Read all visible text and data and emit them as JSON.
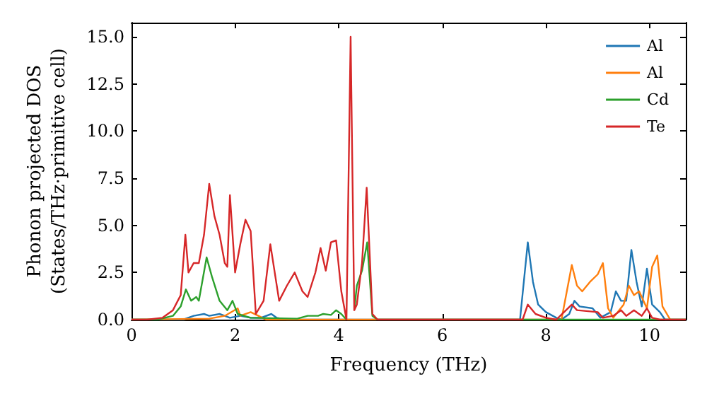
{
  "chart_data": {
    "type": "line",
    "xlabel": "Frequency (THz)",
    "ylabel": "Phonon projected DOS\n(States/THz·primitive cell)",
    "xlim": [
      0,
      10.7
    ],
    "xticks": [
      0,
      2,
      4,
      6,
      8,
      10
    ],
    "ylim": [
      0,
      15.75
    ],
    "yticks": [
      {
        "value": 0,
        "label": "0.0"
      },
      {
        "value": 2.5,
        "label": "2.5"
      },
      {
        "value": 5,
        "label": "5.0"
      },
      {
        "value": 7.5,
        "label": "7.5"
      },
      {
        "value": 10,
        "label": "10.0"
      },
      {
        "value": 12.5,
        "label": "12.5"
      },
      {
        "value": 15,
        "label": "15.0"
      }
    ],
    "grid": false,
    "legend": "top right",
    "marker": "none",
    "line_style": "solid",
    "series": [
      {
        "name": "Al",
        "color": "#1f77b4",
        "x": [
          0,
          1.0,
          1.2,
          1.4,
          1.5,
          1.7,
          1.9,
          2.1,
          2.3,
          2.5,
          2.7,
          2.8,
          3.0,
          7.5,
          7.65,
          7.75,
          7.85,
          8.0,
          8.2,
          8.3,
          8.45,
          8.55,
          8.65,
          8.9,
          9.05,
          9.25,
          9.35,
          9.45,
          9.55,
          9.65,
          9.75,
          9.85,
          9.95,
          10.05,
          10.2,
          10.3,
          10.7
        ],
        "values": [
          0,
          0,
          0.2,
          0.3,
          0.2,
          0.3,
          0.1,
          0.2,
          0.1,
          0.1,
          0.3,
          0.1,
          0,
          0,
          4.1,
          2.0,
          0.8,
          0.4,
          0.1,
          0,
          0.3,
          1.0,
          0.7,
          0.6,
          0.1,
          0.4,
          1.5,
          1.0,
          1.0,
          3.7,
          2.0,
          0.7,
          2.7,
          0.8,
          0.4,
          0,
          0
        ]
      },
      {
        "name": "Al",
        "color": "#ff7f0e",
        "x": [
          0,
          1.5,
          1.8,
          2.05,
          2.1,
          2.3,
          2.45,
          2.6,
          8.3,
          8.5,
          8.6,
          8.7,
          8.85,
          9.0,
          9.1,
          9.2,
          9.3,
          9.5,
          9.6,
          9.7,
          9.8,
          9.95,
          10.05,
          10.15,
          10.25,
          10.4,
          10.7
        ],
        "values": [
          0,
          0.05,
          0.2,
          0.6,
          0.2,
          0.4,
          0.2,
          0,
          0,
          2.9,
          1.8,
          1.5,
          2.0,
          2.4,
          3.0,
          0.6,
          0.1,
          0.8,
          1.8,
          1.3,
          1.5,
          0.6,
          2.8,
          3.4,
          0.7,
          0,
          0
        ]
      },
      {
        "name": "Cd",
        "color": "#2ca02c",
        "x": [
          0,
          0.5,
          0.8,
          0.95,
          1.05,
          1.15,
          1.25,
          1.3,
          1.45,
          1.55,
          1.7,
          1.85,
          1.95,
          2.05,
          2.3,
          3.2,
          3.4,
          3.6,
          3.7,
          3.85,
          3.95,
          4.05,
          4.15,
          4.23,
          4.3,
          4.35,
          4.45,
          4.55,
          4.65,
          4.75,
          10.7
        ],
        "values": [
          0,
          0,
          0.2,
          0.7,
          1.6,
          1.0,
          1.2,
          1.0,
          3.3,
          2.3,
          1.0,
          0.5,
          1.0,
          0.3,
          0.1,
          0.05,
          0.2,
          0.2,
          0.3,
          0.25,
          0.5,
          0.3,
          0,
          null,
          0.5,
          1.8,
          2.6,
          4.1,
          0.2,
          0,
          0
        ]
      },
      {
        "name": "Te",
        "color": "#d62728",
        "x": [
          0,
          0.3,
          0.6,
          0.8,
          0.95,
          1.04,
          1.1,
          1.2,
          1.3,
          1.4,
          1.5,
          1.6,
          1.7,
          1.8,
          1.85,
          1.9,
          2.0,
          2.1,
          2.2,
          2.3,
          2.4,
          2.55,
          2.68,
          2.85,
          3.0,
          3.15,
          3.3,
          3.4,
          3.55,
          3.65,
          3.75,
          3.85,
          3.95,
          4.05,
          4.15,
          4.23,
          4.3,
          4.35,
          4.45,
          4.54,
          4.65,
          4.75,
          7.55,
          7.65,
          7.8,
          8.0,
          8.2,
          8.35,
          8.5,
          8.6,
          9.0,
          9.1,
          9.3,
          9.45,
          9.55,
          9.7,
          9.85,
          9.95,
          10.05,
          10.2,
          10.7
        ],
        "values": [
          0,
          0,
          0.1,
          0.5,
          1.3,
          4.5,
          2.5,
          3.0,
          3.0,
          4.5,
          7.2,
          5.5,
          4.5,
          3.0,
          2.8,
          6.6,
          2.5,
          4.0,
          5.3,
          4.7,
          0.3,
          1.0,
          4.0,
          1.0,
          1.8,
          2.5,
          1.5,
          1.2,
          2.5,
          3.8,
          2.6,
          4.1,
          4.2,
          1.5,
          0,
          15.0,
          0.5,
          0.8,
          3.0,
          7.0,
          0.3,
          0,
          0,
          0.8,
          0.3,
          0.1,
          0,
          0.4,
          0.8,
          0.5,
          0.4,
          0.1,
          0.2,
          0.5,
          0.2,
          0.5,
          0.2,
          0.6,
          0.1,
          0,
          0
        ]
      }
    ]
  }
}
